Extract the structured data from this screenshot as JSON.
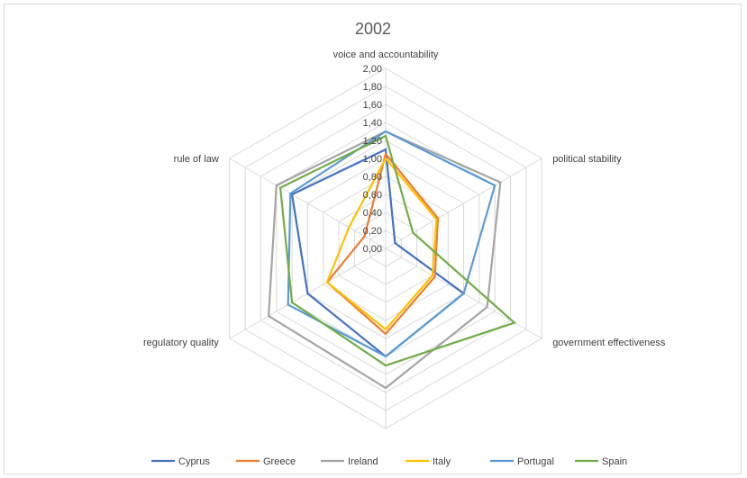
{
  "chart_data": {
    "type": "radar",
    "title": "2002",
    "axes": [
      "voice and accountability",
      "political stability",
      "government effectiveness",
      "",
      "regulatory quality",
      "rule of law"
    ],
    "rmin": 0,
    "rmax": 2,
    "ticks": [
      "0,00",
      "0,20",
      "0,40",
      "0,60",
      "0,80",
      "1,00",
      "1,20",
      "1,40",
      "1,60",
      "1,80",
      "2,00"
    ],
    "grid": true,
    "legend_position": "bottom",
    "series": [
      {
        "name": "Cyprus",
        "color": "#4472c4",
        "values": [
          1.1,
          0.12,
          1.0,
          1.2,
          1.0,
          1.2
        ]
      },
      {
        "name": "Greece",
        "color": "#ed7d31",
        "values": [
          1.05,
          0.67,
          0.63,
          0.95,
          0.75,
          0.27
        ]
      },
      {
        "name": "Ireland",
        "color": "#a5a5a5",
        "values": [
          1.3,
          1.47,
          1.3,
          1.55,
          1.5,
          1.4
        ]
      },
      {
        "name": "Italy",
        "color": "#ffc000",
        "values": [
          1.0,
          0.65,
          0.6,
          0.9,
          0.75,
          0.47
        ]
      },
      {
        "name": "Portugal",
        "color": "#5b9bd5",
        "values": [
          1.3,
          1.4,
          1.0,
          1.2,
          1.25,
          1.22
        ]
      },
      {
        "name": "Spain",
        "color": "#70ad47",
        "values": [
          1.25,
          0.35,
          1.65,
          1.3,
          1.2,
          1.35
        ]
      }
    ]
  }
}
